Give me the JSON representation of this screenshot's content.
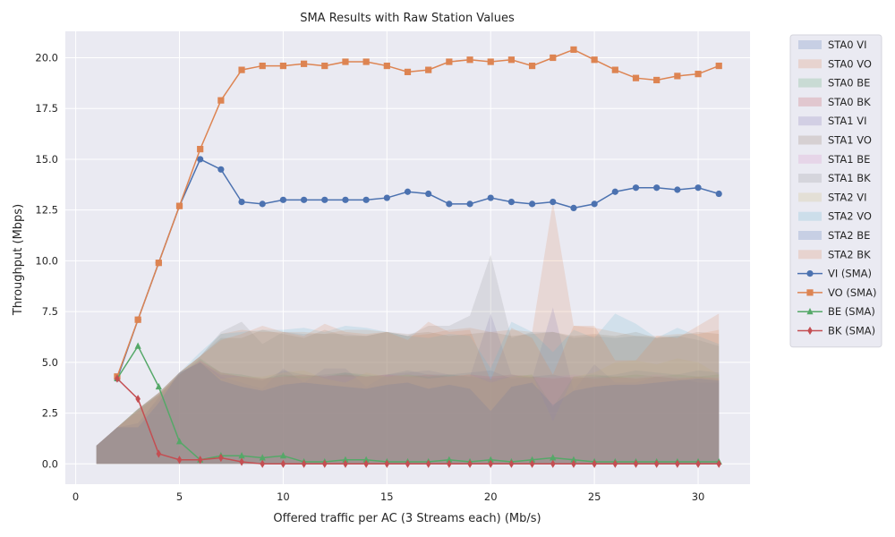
{
  "chart_data": {
    "type": "area",
    "title": "SMA Results with Raw Station Values",
    "xlabel": "Offered traffic per AC (3 Streams each) (Mb/s)",
    "ylabel": "Throughput (Mbps)",
    "xlim": [
      -0.5,
      32.5
    ],
    "ylim": [
      -1.0,
      21.3
    ],
    "xticks": [
      0,
      5,
      10,
      15,
      20,
      25,
      30
    ],
    "yticks": [
      0.0,
      2.5,
      5.0,
      7.5,
      10.0,
      12.5,
      15.0,
      17.5,
      20.0
    ],
    "ytick_labels": [
      "0.0",
      "2.5",
      "5.0",
      "7.5",
      "10.0",
      "12.5",
      "15.0",
      "17.5",
      "20.0"
    ],
    "grid": true,
    "legend_position": "outside-top-right",
    "area_x": [
      1,
      2,
      3,
      4,
      5,
      6,
      7,
      8,
      9,
      10,
      11,
      12,
      13,
      14,
      15,
      16,
      17,
      18,
      19,
      20,
      21,
      22,
      23,
      24,
      25,
      26,
      27,
      28,
      29,
      30,
      31
    ],
    "area_series": [
      {
        "name": "STA0 VI",
        "color": "#4c72b0",
        "values": [
          0.9,
          1.8,
          2.0,
          3.3,
          4.5,
          5.0,
          4.4,
          4.3,
          4.1,
          4.6,
          4.4,
          4.3,
          4.5,
          4.3,
          4.4,
          4.6,
          4.4,
          4.4,
          4.5,
          4.6,
          4.2,
          4.3,
          4.4,
          4.2,
          4.3,
          4.4,
          4.6,
          4.5,
          4.4,
          4.6,
          4.5
        ]
      },
      {
        "name": "STA0 VO",
        "color": "#dd8452",
        "values": [
          0.9,
          1.8,
          2.7,
          3.5,
          4.5,
          5.3,
          6.4,
          6.6,
          6.5,
          6.5,
          6.5,
          6.4,
          6.6,
          6.6,
          6.5,
          6.3,
          6.4,
          6.6,
          6.7,
          6.5,
          6.6,
          6.5,
          12.9,
          6.8,
          6.7,
          6.5,
          6.3,
          6.3,
          6.4,
          6.4,
          6.6
        ]
      },
      {
        "name": "STA0 BE",
        "color": "#55a868",
        "values": [
          0.9,
          1.8,
          2.7,
          3.4,
          4.4,
          5.2,
          4.5,
          4.4,
          4.2,
          4.4,
          4.3,
          4.4,
          4.5,
          4.4,
          4.3,
          4.4,
          4.3,
          4.4,
          4.3,
          4.2,
          4.3,
          4.4,
          2.8,
          4.3,
          4.4,
          4.3,
          4.4,
          4.3,
          4.4,
          4.3,
          4.4
        ]
      },
      {
        "name": "STA0 BK",
        "color": "#c44e52",
        "values": [
          0.9,
          1.8,
          2.6,
          3.4,
          4.4,
          5.1,
          4.5,
          4.3,
          4.2,
          4.3,
          4.4,
          4.3,
          4.4,
          4.3,
          4.4,
          4.3,
          4.4,
          4.3,
          4.4,
          4.3,
          4.4,
          4.3,
          4.2,
          4.3,
          4.2,
          4.3,
          4.2,
          4.3,
          4.2,
          4.3,
          4.2
        ]
      },
      {
        "name": "STA1 VI",
        "color": "#8172b3",
        "values": [
          0.9,
          1.8,
          2.0,
          3.2,
          4.4,
          5.0,
          4.3,
          4.0,
          3.7,
          4.7,
          4.0,
          4.7,
          4.7,
          3.8,
          4.4,
          4.5,
          4.6,
          4.4,
          4.3,
          7.4,
          4.4,
          4.2,
          7.7,
          3.6,
          4.9,
          4.0,
          4.0,
          4.3,
          4.2,
          4.0,
          4.0
        ]
      },
      {
        "name": "STA1 VO",
        "color": "#937860",
        "values": [
          0.9,
          1.8,
          2.7,
          3.5,
          4.5,
          5.3,
          6.2,
          6.2,
          6.6,
          6.4,
          6.2,
          6.6,
          6.3,
          6.3,
          6.5,
          6.4,
          6.5,
          6.3,
          6.4,
          6.5,
          6.3,
          6.4,
          6.5,
          6.3,
          6.4,
          6.3,
          6.5,
          6.2,
          6.3,
          6.5,
          6.4
        ]
      },
      {
        "name": "STA1 BE",
        "color": "#da8bc3",
        "values": [
          0.9,
          1.8,
          2.6,
          3.4,
          4.4,
          5.1,
          4.4,
          4.3,
          4.2,
          4.3,
          4.2,
          4.4,
          4.3,
          4.3,
          4.4,
          4.3,
          4.2,
          4.3,
          4.4,
          4.3,
          4.3,
          4.2,
          4.3,
          4.4,
          4.3,
          4.2,
          4.3,
          4.4,
          4.3,
          4.2,
          4.3
        ]
      },
      {
        "name": "STA1 BK",
        "color": "#8c8c8c",
        "values": [
          0.9,
          1.8,
          2.7,
          3.5,
          4.5,
          5.3,
          6.5,
          7.0,
          5.9,
          6.5,
          6.4,
          6.4,
          6.4,
          6.3,
          6.5,
          6.3,
          6.8,
          6.8,
          7.3,
          10.3,
          6.2,
          6.5,
          6.5,
          6.2,
          6.3,
          6.2,
          6.3,
          6.2,
          6.3,
          6.1,
          5.8
        ]
      },
      {
        "name": "STA2 VI",
        "color": "#ccb974",
        "values": [
          0.9,
          1.8,
          2.6,
          3.4,
          4.4,
          5.0,
          4.2,
          4.3,
          4.3,
          4.5,
          4.6,
          4.2,
          4.0,
          4.5,
          4.3,
          4.4,
          4.2,
          4.3,
          4.4,
          4.0,
          4.3,
          4.4,
          2.1,
          4.3,
          4.5,
          5.0,
          5.1,
          4.9,
          5.2,
          5.0,
          4.4
        ]
      },
      {
        "name": "STA2 VO",
        "color": "#64b5cd",
        "values": [
          0.9,
          1.8,
          2.7,
          3.5,
          4.5,
          5.5,
          6.4,
          6.5,
          6.6,
          6.6,
          6.7,
          6.5,
          6.8,
          6.7,
          6.5,
          6.3,
          6.2,
          6.4,
          6.3,
          4.7,
          7.0,
          6.5,
          5.5,
          6.6,
          6.2,
          7.4,
          6.9,
          6.2,
          6.7,
          6.3,
          5.9
        ]
      },
      {
        "name": "STA2 BE",
        "color": "#4c72b0",
        "values": [
          0.9,
          1.8,
          1.8,
          3.0,
          4.5,
          5.0,
          4.1,
          3.8,
          3.6,
          3.9,
          4.0,
          3.9,
          3.8,
          3.7,
          3.9,
          4.0,
          3.7,
          3.9,
          3.7,
          2.6,
          3.8,
          4.0,
          2.9,
          3.6,
          3.8,
          3.9,
          3.9,
          4.0,
          4.1,
          4.2,
          4.1
        ]
      },
      {
        "name": "STA2 BK",
        "color": "#dd8452",
        "values": [
          0.9,
          1.8,
          2.7,
          3.5,
          4.5,
          5.3,
          6.1,
          6.4,
          6.8,
          6.5,
          6.3,
          6.9,
          6.5,
          6.4,
          6.5,
          6.1,
          7.0,
          6.5,
          6.6,
          4.1,
          6.7,
          6.2,
          4.4,
          6.8,
          6.8,
          5.1,
          5.1,
          6.3,
          6.2,
          6.8,
          7.4
        ]
      }
    ],
    "line_x": [
      2,
      3,
      4,
      5,
      6,
      7,
      8,
      9,
      10,
      11,
      12,
      13,
      14,
      15,
      16,
      17,
      18,
      19,
      20,
      21,
      22,
      23,
      24,
      25,
      26,
      27,
      28,
      29,
      30,
      31
    ],
    "line_series": [
      {
        "name": "VI (SMA)",
        "color": "#4c72b0",
        "marker": "circle",
        "values": [
          4.2,
          7.1,
          9.9,
          12.7,
          15.0,
          14.5,
          12.9,
          12.8,
          13.0,
          13.0,
          13.0,
          13.0,
          13.0,
          13.1,
          13.4,
          13.3,
          12.8,
          12.8,
          13.1,
          12.9,
          12.8,
          12.9,
          12.6,
          12.8,
          13.4,
          13.6,
          13.6,
          13.5,
          13.6,
          13.3
        ]
      },
      {
        "name": "VO (SMA)",
        "color": "#dd8452",
        "marker": "square",
        "values": [
          4.3,
          7.1,
          9.9,
          12.7,
          15.5,
          17.9,
          19.4,
          19.6,
          19.6,
          19.7,
          19.6,
          19.8,
          19.8,
          19.6,
          19.3,
          19.4,
          19.8,
          19.9,
          19.8,
          19.9,
          19.6,
          20.0,
          20.4,
          19.9,
          19.4,
          19.0,
          18.9,
          19.1,
          19.2,
          19.6
        ]
      },
      {
        "name": "BE (SMA)",
        "color": "#55a868",
        "marker": "triangle",
        "values": [
          4.2,
          5.8,
          3.8,
          1.1,
          0.2,
          0.4,
          0.4,
          0.3,
          0.4,
          0.1,
          0.1,
          0.2,
          0.2,
          0.1,
          0.1,
          0.1,
          0.2,
          0.1,
          0.2,
          0.1,
          0.2,
          0.3,
          0.2,
          0.1,
          0.1,
          0.1,
          0.1,
          0.1,
          0.1,
          0.1
        ]
      },
      {
        "name": "BK (SMA)",
        "color": "#c44e52",
        "marker": "diamond",
        "values": [
          4.2,
          3.2,
          0.5,
          0.2,
          0.2,
          0.3,
          0.1,
          0.0,
          0.0,
          0.0,
          0.0,
          0.0,
          0.0,
          0.0,
          0.0,
          0.0,
          0.0,
          0.0,
          0.0,
          0.0,
          0.0,
          0.0,
          0.0,
          0.0,
          0.0,
          0.0,
          0.0,
          0.0,
          0.0,
          0.0
        ]
      }
    ]
  }
}
